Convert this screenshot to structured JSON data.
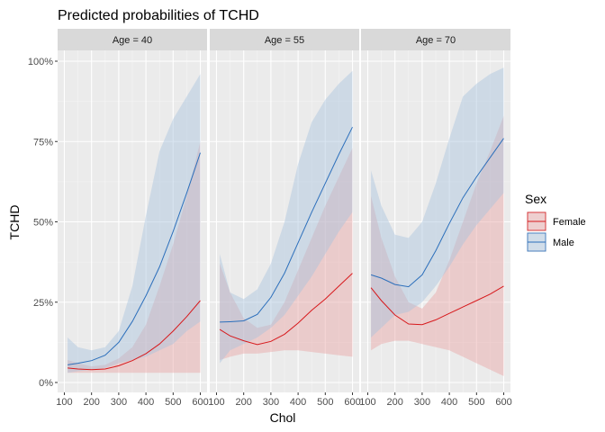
{
  "chart_data": {
    "type": "line",
    "title": "Predicted probabilities of TCHD",
    "xlabel": "Chol",
    "ylabel": "TCHD",
    "xlim": [
      100,
      600
    ],
    "ylim": [
      0,
      1
    ],
    "x_ticks": [
      100,
      200,
      300,
      400,
      500,
      600
    ],
    "x_tick_labels": [
      "100",
      "200",
      "300",
      "400",
      "500",
      "600"
    ],
    "y_ticks": [
      0,
      0.25,
      0.5,
      0.75,
      1.0
    ],
    "y_tick_labels": [
      "0%",
      "25%",
      "50%",
      "75%",
      "100%"
    ],
    "legend": {
      "title": "Sex",
      "position": "right",
      "entries": [
        {
          "label": "Female",
          "color": "#d7191c",
          "fill": "#e8a3a5"
        },
        {
          "label": "Male",
          "color": "#2c6fbb",
          "fill": "#a9c3dd"
        }
      ]
    },
    "panels": [
      {
        "label": "Age = 40",
        "series": [
          {
            "name": "Female",
            "x": [
              112,
              150,
              200,
              250,
              300,
              350,
              400,
              450,
              500,
              550,
              600
            ],
            "y": [
              0.045,
              0.042,
              0.04,
              0.042,
              0.052,
              0.068,
              0.09,
              0.12,
              0.16,
              0.205,
              0.255
            ],
            "lower": [
              0.03,
              0.03,
              0.03,
              0.03,
              0.03,
              0.03,
              0.03,
              0.03,
              0.03,
              0.03,
              0.03
            ],
            "upper": [
              0.07,
              0.06,
              0.05,
              0.055,
              0.075,
              0.11,
              0.18,
              0.3,
              0.43,
              0.58,
              0.75
            ]
          },
          {
            "name": "Male",
            "x": [
              112,
              150,
              200,
              250,
              300,
              350,
              400,
              450,
              500,
              550,
              600
            ],
            "y": [
              0.055,
              0.06,
              0.068,
              0.085,
              0.125,
              0.19,
              0.27,
              0.36,
              0.47,
              0.59,
              0.715
            ],
            "lower": [
              0.03,
              0.035,
              0.04,
              0.045,
              0.06,
              0.07,
              0.08,
              0.1,
              0.12,
              0.16,
              0.19
            ],
            "upper": [
              0.14,
              0.11,
              0.1,
              0.11,
              0.16,
              0.3,
              0.52,
              0.72,
              0.82,
              0.89,
              0.96
            ]
          }
        ]
      },
      {
        "label": "Age = 55",
        "series": [
          {
            "name": "Female",
            "x": [
              112,
              150,
              200,
              250,
              300,
              350,
              400,
              450,
              500,
              550,
              600
            ],
            "y": [
              0.165,
              0.145,
              0.13,
              0.118,
              0.128,
              0.15,
              0.185,
              0.225,
              0.26,
              0.3,
              0.34
            ],
            "lower": [
              0.07,
              0.08,
              0.09,
              0.09,
              0.095,
              0.1,
              0.1,
              0.095,
              0.09,
              0.085,
              0.08
            ],
            "upper": [
              0.37,
              0.28,
              0.2,
              0.17,
              0.18,
              0.25,
              0.35,
              0.45,
              0.55,
              0.64,
              0.73
            ]
          },
          {
            "name": "Male",
            "x": [
              112,
              150,
              200,
              250,
              300,
              350,
              400,
              450,
              500,
              550,
              600
            ],
            "y": [
              0.188,
              0.189,
              0.192,
              0.212,
              0.265,
              0.34,
              0.435,
              0.53,
              0.62,
              0.71,
              0.795
            ],
            "lower": [
              0.06,
              0.1,
              0.12,
              0.14,
              0.17,
              0.21,
              0.27,
              0.33,
              0.4,
              0.47,
              0.53
            ],
            "upper": [
              0.4,
              0.28,
              0.26,
              0.29,
              0.37,
              0.5,
              0.68,
              0.81,
              0.88,
              0.93,
              0.97
            ]
          }
        ]
      },
      {
        "label": "Age = 70",
        "series": [
          {
            "name": "Female",
            "x": [
              112,
              150,
              200,
              250,
              300,
              350,
              400,
              450,
              500,
              550,
              600
            ],
            "y": [
              0.295,
              0.255,
              0.21,
              0.182,
              0.18,
              0.195,
              0.215,
              0.235,
              0.255,
              0.275,
              0.3
            ],
            "lower": [
              0.1,
              0.12,
              0.13,
              0.13,
              0.12,
              0.11,
              0.1,
              0.08,
              0.06,
              0.04,
              0.02
            ],
            "upper": [
              0.58,
              0.45,
              0.33,
              0.25,
              0.23,
              0.28,
              0.38,
              0.5,
              0.62,
              0.72,
              0.83
            ]
          },
          {
            "name": "Male",
            "x": [
              112,
              150,
              200,
              250,
              300,
              350,
              400,
              450,
              500,
              550,
              600
            ],
            "y": [
              0.335,
              0.325,
              0.305,
              0.298,
              0.335,
              0.41,
              0.495,
              0.575,
              0.64,
              0.7,
              0.76
            ],
            "lower": [
              0.14,
              0.17,
              0.21,
              0.22,
              0.25,
              0.3,
              0.36,
              0.43,
              0.49,
              0.54,
              0.59
            ],
            "upper": [
              0.66,
              0.55,
              0.46,
              0.45,
              0.5,
              0.62,
              0.76,
              0.89,
              0.93,
              0.96,
              0.98
            ]
          }
        ]
      }
    ]
  }
}
